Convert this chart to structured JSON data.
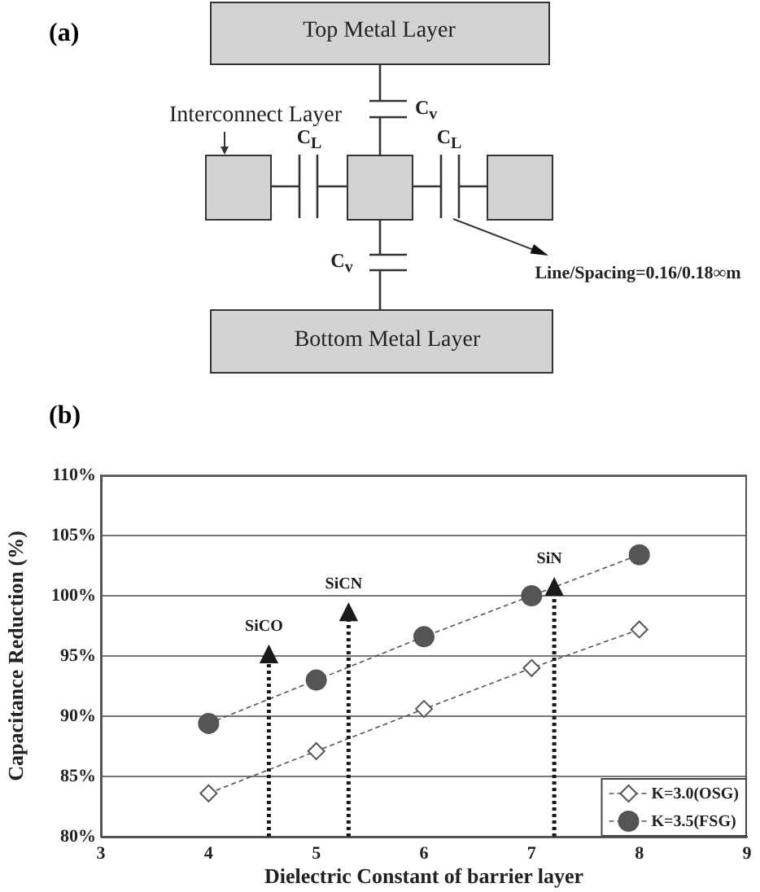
{
  "chart_data": [
    {
      "type": "other",
      "title": "(a)",
      "annotations": [
        "Top Metal Layer",
        "Interconnect Layer",
        "C$_{v}$",
        "C$_{L}$",
        "C$_{L}$",
        "C$_{v}$",
        "Line/Spacing=0.16/0.18∞m",
        "Bottom Metal Layer"
      ]
    },
    {
      "type": "line",
      "title": "(b)",
      "xlabel": "Dielectric Constant of barrier layer",
      "ylabel": "Capacitance Reduction (%)",
      "x": [
        4,
        5,
        6,
        7,
        8
      ],
      "series": [
        {
          "name": "K=3.0(OSG)",
          "color": "#555555",
          "marker": "diamond",
          "values": [
            83.6,
            87.1,
            90.6,
            94.0,
            97.2
          ]
        },
        {
          "name": "K=3.5(FSG)",
          "color": "#555555",
          "marker": "circle",
          "values": [
            89.4,
            93.0,
            96.6,
            100.0,
            103.4
          ]
        },
        {
          "name": "SiCO",
          "type": "lollipop",
          "x": [
            4.56
          ],
          "values": [
            95.0
          ],
          "color": "#1a1a1a",
          "marker": "triangle",
          "line_style": "dotted"
        },
        {
          "name": "SiCN",
          "type": "lollipop",
          "x": [
            5.3
          ],
          "values": [
            98.5
          ],
          "color": "#1a1a1a",
          "marker": "triangle",
          "line_style": "dotted"
        },
        {
          "name": "SiN",
          "type": "lollipop",
          "x": [
            7.21
          ],
          "values": [
            100.6
          ],
          "color": "#1a1a1a",
          "marker": "triangle",
          "line_style": "dotted"
        }
      ],
      "xlim": [
        3,
        9
      ],
      "xticks": [
        3,
        4,
        5,
        6,
        7,
        8,
        9
      ],
      "ylim": [
        80,
        110
      ],
      "yticks": [
        {
          "value": 80,
          "label": "80%"
        },
        {
          "value": 85,
          "label": "85%"
        },
        {
          "value": 90,
          "label": "90%"
        },
        {
          "value": 95,
          "label": "95%"
        },
        {
          "value": 100,
          "label": "100%"
        },
        {
          "value": 105,
          "label": "105%"
        },
        {
          "value": 110,
          "label": "110%"
        }
      ],
      "grid": "y",
      "legend": "bottom right",
      "line_style": "dashed"
    }
  ]
}
